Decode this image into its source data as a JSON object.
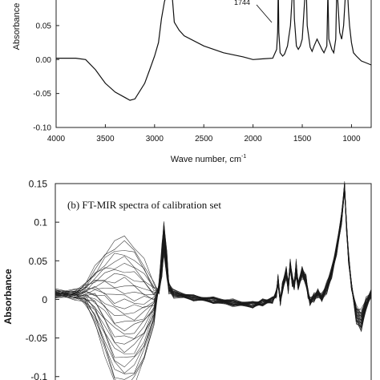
{
  "chart_data": [
    {
      "type": "line",
      "title": "",
      "xlabel": "Wave number, cm",
      "xlabel_sup": "-1",
      "ylabel": "Absorbance",
      "xlim": [
        4000,
        800
      ],
      "ylim": [
        -0.1,
        0.09
      ],
      "xticks": [
        "4000",
        "3500",
        "3000",
        "2500",
        "2000",
        "1500",
        "1000"
      ],
      "yticks": [
        "-0.10",
        "-0.05",
        "0.00",
        "0.05"
      ],
      "annotations": [
        {
          "text": "1744",
          "x": 1744,
          "y": 0.085
        }
      ],
      "series": [
        {
          "x": [
            4000,
            3800,
            3700,
            3600,
            3500,
            3400,
            3300,
            3250,
            3200,
            3100,
            3050,
            3000,
            2960,
            2930,
            2900,
            2870,
            2850,
            2830,
            2800,
            2750,
            2700,
            2500,
            2300,
            2100,
            2000,
            1900,
            1800,
            1760,
            1750,
            1744,
            1738,
            1725,
            1700,
            1680,
            1650,
            1620,
            1600,
            1590,
            1580,
            1560,
            1540,
            1520,
            1500,
            1470,
            1460,
            1450,
            1420,
            1400,
            1380,
            1350,
            1300,
            1280,
            1250,
            1240,
            1230,
            1200,
            1180,
            1160,
            1150,
            1140,
            1120,
            1100,
            1080,
            1060,
            1050,
            1040,
            1030,
            1020,
            1000,
            980,
            950,
            900,
            850,
            800
          ],
          "y": [
            0.002,
            0.002,
            0.0,
            -0.015,
            -0.035,
            -0.048,
            -0.056,
            -0.06,
            -0.058,
            -0.035,
            -0.015,
            0.005,
            0.025,
            0.06,
            0.085,
            0.1,
            0.12,
            0.11,
            0.055,
            0.043,
            0.035,
            0.02,
            0.01,
            0.004,
            0.0,
            0.001,
            0.002,
            0.015,
            0.04,
            0.11,
            0.04,
            0.01,
            0.005,
            0.008,
            0.02,
            0.05,
            0.1,
            0.12,
            0.06,
            0.02,
            0.015,
            0.02,
            0.03,
            0.1,
            0.11,
            0.05,
            0.018,
            0.012,
            0.02,
            0.03,
            0.015,
            0.01,
            0.02,
            0.1,
            0.03,
            0.015,
            0.01,
            0.03,
            0.1,
            0.09,
            0.04,
            0.03,
            0.05,
            0.1,
            0.12,
            0.1,
            0.07,
            0.05,
            0.025,
            0.01,
            0.005,
            -0.002,
            -0.005,
            -0.008
          ]
        }
      ]
    },
    {
      "type": "line",
      "title": "(b) FT-MIR spectra of calibration set",
      "xlabel": "",
      "ylabel": "Absorbance",
      "xlim": [
        4000,
        800
      ],
      "ylim": [
        -0.12,
        0.15
      ],
      "yticks": [
        "0.15",
        "0.1",
        "0.05",
        "0",
        "-0.05",
        "-0.1"
      ],
      "series_count": 30,
      "series_shape": {
        "x": [
          4000,
          3800,
          3700,
          3600,
          3500,
          3400,
          3300,
          3200,
          3100,
          3000,
          2950,
          2920,
          2900,
          2870,
          2850,
          2800,
          2600,
          2400,
          2200,
          2000,
          1900,
          1800,
          1760,
          1744,
          1720,
          1700,
          1660,
          1640,
          1620,
          1600,
          1580,
          1560,
          1540,
          1500,
          1460,
          1440,
          1420,
          1380,
          1340,
          1300,
          1250,
          1200,
          1150,
          1100,
          1070,
          1050,
          1030,
          1000,
          950,
          900,
          850,
          800
        ],
        "y_low": [
          0.005,
          0.003,
          -0.005,
          -0.03,
          -0.07,
          -0.11,
          -0.12,
          -0.11,
          -0.08,
          -0.03,
          0.02,
          0.07,
          0.1,
          0.06,
          0.02,
          0.01,
          0.002,
          -0.002,
          -0.006,
          -0.008,
          -0.005,
          -0.002,
          0.01,
          0.03,
          0.0,
          0.02,
          0.04,
          0.02,
          0.05,
          0.03,
          0.02,
          0.05,
          0.02,
          0.04,
          0.03,
          0.01,
          0.0,
          0.005,
          0.01,
          0.005,
          0.02,
          0.04,
          0.07,
          0.11,
          0.15,
          0.1,
          0.06,
          0.02,
          -0.03,
          -0.04,
          -0.01,
          0.005
        ],
        "y_high": [
          0.01,
          0.01,
          0.02,
          0.04,
          0.06,
          0.075,
          0.08,
          0.07,
          0.05,
          0.02,
          0.01,
          0.03,
          0.06,
          0.03,
          0.01,
          0.005,
          0.002,
          0.0,
          -0.003,
          -0.006,
          -0.003,
          0.0,
          0.005,
          0.02,
          -0.005,
          0.01,
          0.03,
          0.01,
          0.04,
          0.02,
          0.015,
          0.03,
          0.015,
          0.03,
          0.02,
          0.005,
          -0.005,
          0.0,
          0.005,
          0.0,
          0.01,
          0.03,
          0.06,
          0.1,
          0.14,
          0.09,
          0.05,
          0.015,
          -0.01,
          -0.015,
          0.0,
          0.01
        ]
      }
    }
  ]
}
